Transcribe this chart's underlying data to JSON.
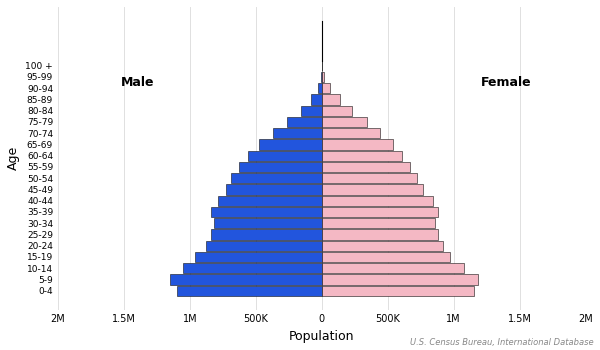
{
  "age_groups": [
    "0-4",
    "5-9",
    "10-14",
    "15-19",
    "20-24",
    "25-29",
    "30-34",
    "35-39",
    "40-44",
    "45-49",
    "50-54",
    "55-59",
    "60-64",
    "65-69",
    "70-74",
    "75-79",
    "80-84",
    "85-89",
    "90-94",
    "95-99",
    "100 +"
  ],
  "male": [
    1100000,
    1150000,
    1050000,
    960000,
    880000,
    840000,
    820000,
    840000,
    790000,
    730000,
    690000,
    630000,
    560000,
    480000,
    370000,
    265000,
    160000,
    80000,
    30000,
    8000,
    1500
  ],
  "female": [
    1150000,
    1180000,
    1080000,
    970000,
    920000,
    880000,
    860000,
    880000,
    840000,
    770000,
    720000,
    670000,
    610000,
    540000,
    440000,
    340000,
    230000,
    135000,
    60000,
    20000,
    4000
  ],
  "male_color": "#2255dd",
  "female_color": "#f4b8c4",
  "bar_edge_color": "#111111",
  "bar_linewidth": 0.4,
  "xlabel": "Population",
  "ylabel": "Age",
  "male_label": "Male",
  "female_label": "Female",
  "source_text": "U.S. Census Bureau, International Database",
  "xlim": 2000000,
  "tick_values": [
    -2000000,
    -1500000,
    -1000000,
    -500000,
    0,
    500000,
    1000000,
    1500000,
    2000000
  ],
  "tick_labels": [
    "2M",
    "1.5M",
    "1M",
    "500K",
    "0",
    "500K",
    "1M",
    "1.5M",
    "2M"
  ],
  "background_color": "#ffffff",
  "figure_facecolor": "#ffffff",
  "grid_color": "#e0e0e0"
}
